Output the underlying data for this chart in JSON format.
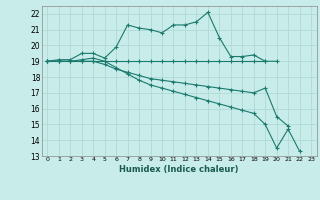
{
  "title": "",
  "xlabel": "Humidex (Indice chaleur)",
  "bg_color": "#c8ecea",
  "grid_color": "#b0d8d4",
  "line_color": "#1a7a6e",
  "xlim": [
    -0.5,
    23.5
  ],
  "ylim": [
    13,
    22.5
  ],
  "x_ticks": [
    0,
    1,
    2,
    3,
    4,
    5,
    6,
    7,
    8,
    9,
    10,
    11,
    12,
    13,
    14,
    15,
    16,
    17,
    18,
    19,
    20,
    21,
    22,
    23
  ],
  "y_ticks": [
    13,
    14,
    15,
    16,
    17,
    18,
    19,
    20,
    21,
    22
  ],
  "series": [
    [
      19.0,
      19.1,
      19.1,
      19.5,
      19.5,
      19.2,
      19.9,
      21.3,
      21.1,
      21.0,
      20.8,
      21.3,
      21.3,
      21.5,
      22.1,
      20.5,
      19.3,
      19.3,
      19.4,
      19.0,
      19.0,
      null,
      null,
      null
    ],
    [
      19.0,
      19.0,
      19.0,
      19.0,
      19.0,
      19.0,
      19.0,
      19.0,
      19.0,
      19.0,
      19.0,
      19.0,
      19.0,
      19.0,
      19.0,
      19.0,
      19.0,
      19.0,
      19.0,
      19.0,
      null,
      null,
      null,
      null
    ],
    [
      19.0,
      19.0,
      19.0,
      19.0,
      19.0,
      18.8,
      18.5,
      18.3,
      18.1,
      17.9,
      17.8,
      17.7,
      17.6,
      17.5,
      17.4,
      17.3,
      17.2,
      17.1,
      17.0,
      17.3,
      15.5,
      14.9,
      null,
      null
    ],
    [
      19.0,
      19.0,
      19.0,
      19.1,
      19.2,
      19.0,
      18.6,
      18.2,
      17.8,
      17.5,
      17.3,
      17.1,
      16.9,
      16.7,
      16.5,
      16.3,
      16.1,
      15.9,
      15.7,
      15.0,
      13.5,
      14.7,
      13.3,
      null
    ]
  ]
}
